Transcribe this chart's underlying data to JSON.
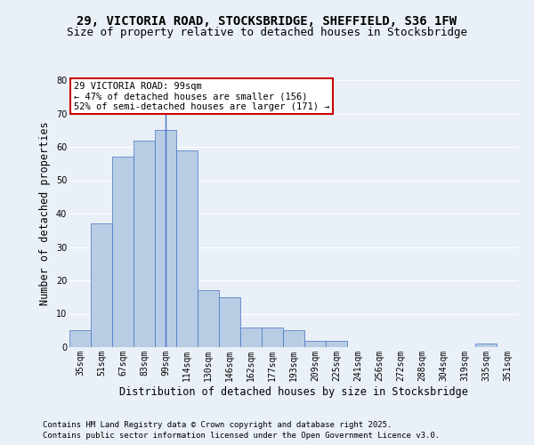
{
  "title1": "29, VICTORIA ROAD, STOCKSBRIDGE, SHEFFIELD, S36 1FW",
  "title2": "Size of property relative to detached houses in Stocksbridge",
  "xlabel": "Distribution of detached houses by size in Stocksbridge",
  "ylabel": "Number of detached properties",
  "categories": [
    "35sqm",
    "51sqm",
    "67sqm",
    "83sqm",
    "99sqm",
    "114sqm",
    "130sqm",
    "146sqm",
    "162sqm",
    "177sqm",
    "193sqm",
    "209sqm",
    "225sqm",
    "241sqm",
    "256sqm",
    "272sqm",
    "288sqm",
    "304sqm",
    "319sqm",
    "335sqm",
    "351sqm"
  ],
  "values": [
    5,
    37,
    57,
    62,
    65,
    59,
    17,
    15,
    6,
    6,
    5,
    2,
    2,
    0,
    0,
    0,
    0,
    0,
    0,
    1,
    0
  ],
  "bar_color": "#b8cce4",
  "bar_edge_color": "#4472c4",
  "highlight_bar_index": 4,
  "highlight_line_color": "#4472c4",
  "ylim": [
    0,
    80
  ],
  "yticks": [
    0,
    10,
    20,
    30,
    40,
    50,
    60,
    70,
    80
  ],
  "annotation_text": "29 VICTORIA ROAD: 99sqm\n← 47% of detached houses are smaller (156)\n52% of semi-detached houses are larger (171) →",
  "annotation_box_color": "#ffffff",
  "annotation_box_edge": "#cc0000",
  "footer1": "Contains HM Land Registry data © Crown copyright and database right 2025.",
  "footer2": "Contains public sector information licensed under the Open Government Licence v3.0.",
  "bg_color": "#eaf0f8",
  "plot_bg_color": "#eaf0f8",
  "grid_color": "#ffffff",
  "title_fontsize": 10,
  "subtitle_fontsize": 9,
  "axis_label_fontsize": 8.5,
  "tick_fontsize": 7,
  "ann_fontsize": 7.5,
  "footer_fontsize": 6.5
}
